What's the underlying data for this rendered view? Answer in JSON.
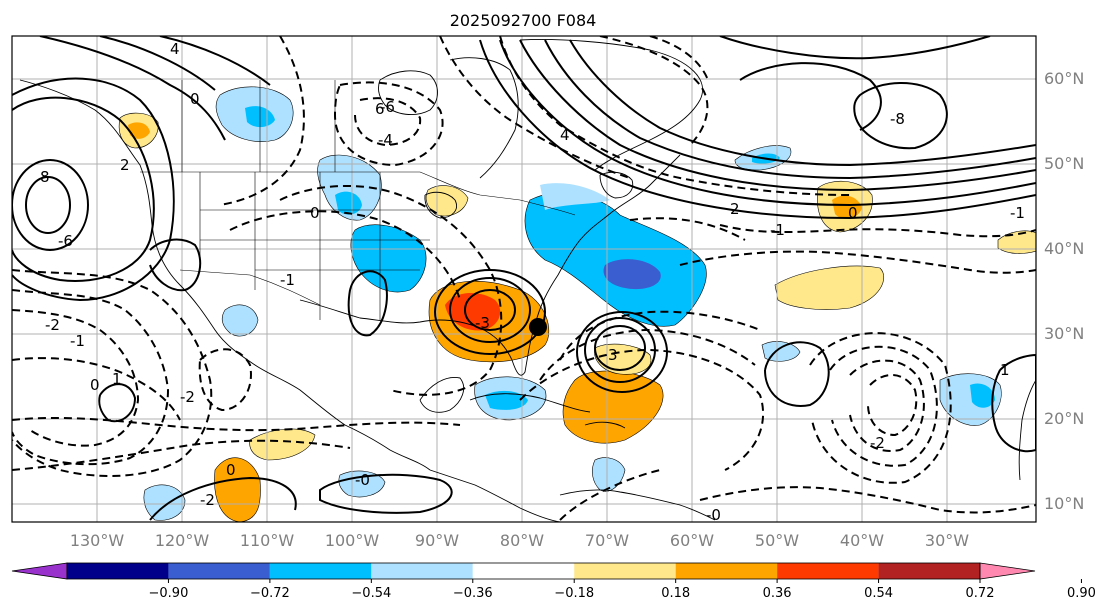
{
  "title": "2025092700 F084",
  "map": {
    "lon_ticks": [
      "130°W",
      "120°W",
      "110°W",
      "100°W",
      "90°W",
      "80°W",
      "70°W",
      "60°W",
      "50°W",
      "40°W",
      "30°W"
    ],
    "lat_ticks": [
      "60°N",
      "50°N",
      "40°N",
      "30°N",
      "20°N",
      "10°N"
    ],
    "grid": true,
    "contour_labels": [
      "4",
      "2",
      "0",
      "-2",
      "6",
      "8",
      "-6",
      "-4",
      "4",
      "2",
      "0",
      "-1",
      "1",
      "-2",
      "0",
      "-1",
      "-3",
      "3",
      "0",
      "-2",
      "-0",
      "-1",
      "0",
      "-1",
      "-8",
      "-0",
      "-6",
      "1",
      "-2"
    ]
  },
  "colorbar": {
    "labels": [
      "−0.90",
      "−0.72",
      "−0.54",
      "−0.36",
      "−0.18",
      "0.18",
      "0.36",
      "0.54",
      "0.72",
      "0.90"
    ],
    "colors": [
      "#9932CC",
      "#00008B",
      "#3A5ED0",
      "#00BFFF",
      "#AEE1FF",
      "#FFFFFF",
      "#FFE88C",
      "#FFA500",
      "#FF3A00",
      "#B22222",
      "#FF88B0"
    ],
    "extend": "both"
  }
}
